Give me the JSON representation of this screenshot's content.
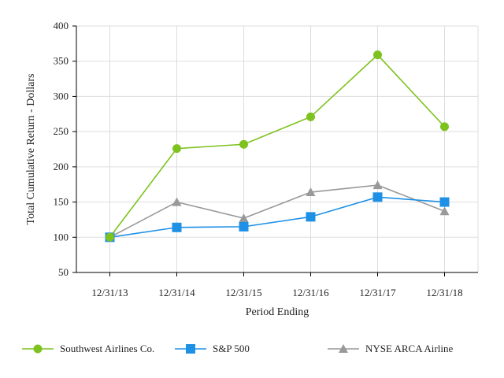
{
  "chart_data": {
    "type": "line",
    "title": "",
    "xlabel": "Period Ending",
    "ylabel": "Total Cumulative Return - Dollars",
    "categories": [
      "12/31/13",
      "12/31/14",
      "12/31/15",
      "12/31/16",
      "12/31/17",
      "12/31/18"
    ],
    "ylim": [
      50,
      400
    ],
    "yticks": [
      50,
      100,
      150,
      200,
      250,
      300,
      350,
      400
    ],
    "grid": true,
    "legend_position": "bottom",
    "series": [
      {
        "name": "Southwest Airlines Co.",
        "marker": "circle",
        "color": "#7dc21e",
        "values": [
          100,
          226,
          232,
          271,
          359,
          257
        ]
      },
      {
        "name": "S&P 500",
        "marker": "square",
        "color": "#1e90e6",
        "values": [
          100,
          114,
          115,
          129,
          157,
          150
        ]
      },
      {
        "name": "NYSE ARCA Airline",
        "marker": "triangle",
        "color": "#999999",
        "values": [
          100,
          150,
          127,
          164,
          174,
          137
        ]
      }
    ]
  }
}
